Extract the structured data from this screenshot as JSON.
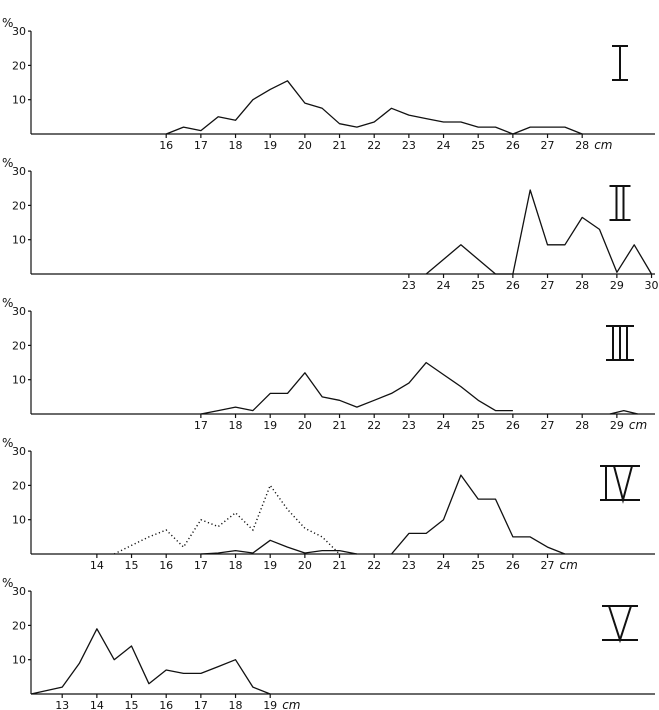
{
  "chart_data": [
    {
      "type": "line",
      "panel_numeral": "I",
      "ylabel": "%",
      "unit": "cm",
      "ylim": [
        0,
        30
      ],
      "yticks": [
        "10",
        "20",
        "30"
      ],
      "xlim": [
        12.1,
        30.1
      ],
      "xticks": [
        16,
        17,
        18,
        19,
        20,
        21,
        22,
        23,
        24,
        25,
        26,
        27,
        28
      ],
      "series": [
        {
          "style": "solid",
          "x": [
            16,
            16.5,
            17,
            17.5,
            18,
            18.5,
            19,
            19.5,
            20,
            20.5,
            21,
            21.5,
            22,
            22.5,
            23,
            23.5,
            24,
            24.5,
            25,
            25.5,
            26,
            26.5,
            27,
            27.5,
            28
          ],
          "y": [
            0,
            2,
            1,
            5,
            4,
            10,
            13,
            15.5,
            9,
            7.5,
            3,
            2,
            3.5,
            7.5,
            5.5,
            4.5,
            3.5,
            3.5,
            2,
            2,
            0,
            2,
            2,
            2,
            0
          ]
        }
      ]
    },
    {
      "type": "line",
      "panel_numeral": "II",
      "ylabel": "%",
      "unit": "",
      "ylim": [
        0,
        30
      ],
      "yticks": [
        "10",
        "20",
        "30"
      ],
      "xlim": [
        12.1,
        30.1
      ],
      "xticks": [
        23,
        24,
        25,
        26,
        27,
        28,
        29,
        30
      ],
      "series": [
        {
          "style": "solid",
          "x": [
            23.5,
            24.5,
            25.5,
            26,
            26.5,
            27,
            27.5,
            28,
            28.5,
            29,
            29.5,
            30
          ],
          "y": [
            0,
            8.5,
            0,
            0,
            24.5,
            8.5,
            8.5,
            16.5,
            13,
            0.5,
            8.5,
            0
          ]
        }
      ]
    },
    {
      "type": "line",
      "panel_numeral": "III",
      "ylabel": "%",
      "unit": "cm",
      "ylim": [
        0,
        30
      ],
      "yticks": [
        "10",
        "20",
        "30"
      ],
      "xlim": [
        12.1,
        30.1
      ],
      "xticks": [
        17,
        18,
        19,
        20,
        21,
        22,
        23,
        24,
        25,
        26,
        27,
        28,
        29
      ],
      "series": [
        {
          "style": "solid",
          "x": [
            17,
            17.5,
            18,
            18.5,
            19,
            19.5,
            20,
            20.5,
            21,
            21.5,
            22,
            22.5,
            23,
            23.5,
            24,
            24.5,
            25,
            25.5,
            26
          ],
          "y": [
            0,
            1,
            2,
            1,
            6,
            6,
            12,
            5,
            4,
            2,
            4,
            6,
            9,
            15,
            11.5,
            8,
            4,
            1,
            1
          ]
        },
        {
          "style": "solid",
          "x": [
            28.8,
            29.2,
            29.6
          ],
          "y": [
            0,
            1,
            0
          ]
        }
      ]
    },
    {
      "type": "line",
      "panel_numeral": "IV",
      "ylabel": "%",
      "unit": "cm",
      "ylim": [
        0,
        30
      ],
      "yticks": [
        "10",
        "20",
        "30"
      ],
      "xlim": [
        12.1,
        30.1
      ],
      "xticks": [
        14,
        15,
        16,
        17,
        18,
        19,
        20,
        21,
        22,
        23,
        24,
        25,
        26,
        27
      ],
      "series": [
        {
          "style": "dotted",
          "x": [
            14.5,
            15,
            15.5,
            16,
            16.5,
            17,
            17.5,
            18,
            18.5,
            19,
            19.5,
            20,
            20.5,
            21
          ],
          "y": [
            0,
            2.5,
            5,
            7,
            2,
            10,
            8,
            12,
            7,
            20,
            13,
            7.5,
            5,
            0
          ]
        },
        {
          "style": "solid",
          "x": [
            17,
            17.5,
            18,
            18.5,
            19,
            19.5,
            20,
            20.5,
            21,
            21.5
          ],
          "y": [
            0,
            0.3,
            1,
            0.3,
            4,
            2,
            0.3,
            1,
            1,
            0
          ]
        },
        {
          "style": "solid",
          "x": [
            22.5,
            23,
            23.5,
            24,
            24.5,
            25,
            25.5,
            26,
            26.5,
            27,
            27.5
          ],
          "y": [
            0,
            6,
            6,
            10,
            23,
            16,
            16,
            5,
            5,
            2,
            0
          ]
        }
      ]
    },
    {
      "type": "line",
      "panel_numeral": "V",
      "ylabel": "%",
      "unit": "cm",
      "ylim": [
        0,
        30
      ],
      "yticks": [
        "10",
        "20",
        "30"
      ],
      "xlim": [
        12.1,
        30.1
      ],
      "xticks": [
        13,
        14,
        15,
        16,
        17,
        18,
        19
      ],
      "series": [
        {
          "style": "solid",
          "x": [
            12.1,
            13,
            13.5,
            14,
            14.5,
            15,
            15.5,
            16,
            16.5,
            17,
            17.5,
            18,
            18.5,
            19
          ],
          "y": [
            0,
            2,
            9,
            19,
            10,
            14,
            3,
            7,
            6,
            6,
            8,
            10,
            2,
            0
          ]
        }
      ]
    }
  ]
}
